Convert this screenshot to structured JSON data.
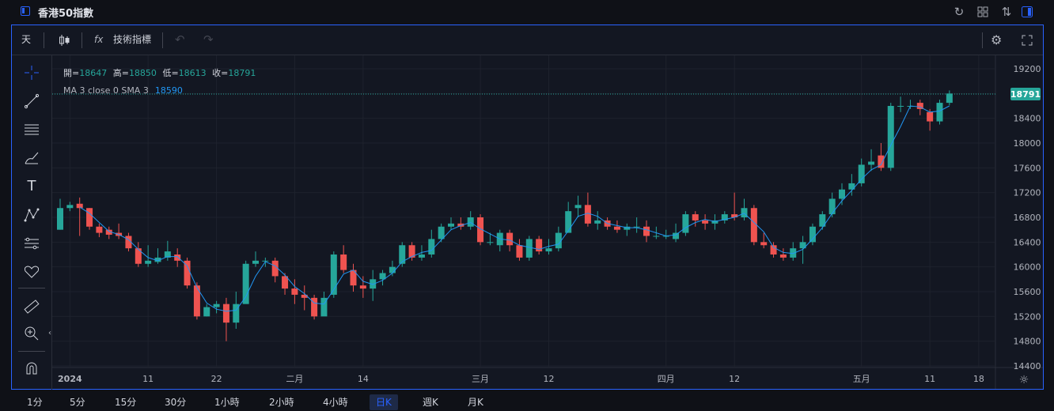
{
  "window": {
    "title": "香港50指數"
  },
  "toolbar": {
    "interval": "天",
    "indicators_label": "技術指標",
    "fx": "fx"
  },
  "legend": {
    "open_label": "開",
    "open": "18647",
    "high_label": "高",
    "high": "18850",
    "low_label": "低",
    "low": "18613",
    "close_label": "收",
    "close": "18791",
    "ma_label": "MA 3 close 0 SMA 3",
    "ma_value": "18590"
  },
  "price_tag": "18791",
  "colors": {
    "up": "#26a69a",
    "down": "#ef5350",
    "accent": "#2962ff",
    "ma": "#2196f3"
  },
  "chart_data": {
    "type": "candlestick",
    "y_ticks": [
      "19200",
      "18800",
      "18400",
      "18000",
      "17600",
      "17200",
      "16800",
      "16400",
      "16000",
      "15600",
      "15200",
      "14800",
      "14400"
    ],
    "ylim": [
      14400,
      19200
    ],
    "x_labels": [
      {
        "label": "2024",
        "index": 1
      },
      {
        "label": "11",
        "index": 9
      },
      {
        "label": "22",
        "index": 16
      },
      {
        "label": "二月",
        "index": 24
      },
      {
        "label": "14",
        "index": 31
      },
      {
        "label": "三月",
        "index": 43
      },
      {
        "label": "12",
        "index": 50
      },
      {
        "label": "四月",
        "index": 62
      },
      {
        "label": "12",
        "index": 69
      },
      {
        "label": "五月",
        "index": 82
      },
      {
        "label": "11",
        "index": 89
      },
      {
        "label": "18",
        "index": 94
      }
    ],
    "last_price": 18791,
    "candles": [
      [
        16600,
        16950,
        17100,
        16600
      ],
      [
        16950,
        17000,
        17050,
        16900
      ],
      [
        17020,
        16950,
        17120,
        16500
      ],
      [
        16950,
        16650,
        16950,
        16600
      ],
      [
        16650,
        16550,
        16700,
        16480
      ],
      [
        16600,
        16520,
        16650,
        16450
      ],
      [
        16550,
        16500,
        16700,
        16450
      ],
      [
        16500,
        16300,
        16550,
        16250
      ],
      [
        16300,
        16050,
        16400,
        16000
      ],
      [
        16050,
        16100,
        16350,
        16000
      ],
      [
        16080,
        16150,
        16300,
        16050
      ],
      [
        16150,
        16250,
        16420,
        16100
      ],
      [
        16200,
        16100,
        16300,
        16000
      ],
      [
        16100,
        15700,
        16150,
        15650
      ],
      [
        15700,
        15200,
        15750,
        15150
      ],
      [
        15200,
        15350,
        15400,
        15200
      ],
      [
        15350,
        15400,
        15450,
        15250
      ],
      [
        15400,
        15100,
        15500,
        14800
      ],
      [
        15100,
        15400,
        15600,
        15000
      ],
      [
        15400,
        16050,
        16100,
        15500
      ],
      [
        16050,
        16100,
        16250,
        16000
      ],
      [
        16100,
        16100,
        16150,
        16000
      ],
      [
        16100,
        15850,
        16150,
        15750
      ],
      [
        15850,
        15650,
        15900,
        15550
      ],
      [
        15650,
        15550,
        15800,
        15400
      ],
      [
        15550,
        15500,
        15700,
        15300
      ],
      [
        15500,
        15200,
        15550,
        15150
      ],
      [
        15200,
        15500,
        15600,
        15300
      ],
      [
        15550,
        16200,
        16250,
        15500
      ],
      [
        16200,
        15950,
        16350,
        15900
      ],
      [
        15950,
        15700,
        16050,
        15600
      ],
      [
        15700,
        15650,
        15850,
        15500
      ],
      [
        15650,
        15800,
        15950,
        15450
      ],
      [
        15800,
        15900,
        15950,
        15700
      ],
      [
        15900,
        16000,
        16100,
        15850
      ],
      [
        16050,
        16350,
        16400,
        16000
      ],
      [
        16350,
        16150,
        16400,
        16100
      ],
      [
        16150,
        16200,
        16350,
        16100
      ],
      [
        16200,
        16450,
        16600,
        16150
      ],
      [
        16450,
        16650,
        16700,
        16400
      ],
      [
        16650,
        16700,
        16800,
        16600
      ],
      [
        16700,
        16650,
        16800,
        16600
      ],
      [
        16650,
        16800,
        16900,
        16600
      ],
      [
        16800,
        16400,
        16850,
        16350
      ],
      [
        16400,
        16400,
        16550,
        16350
      ],
      [
        16350,
        16550,
        16600,
        16250
      ],
      [
        16550,
        16350,
        16600,
        16250
      ],
      [
        16350,
        16150,
        16450,
        16100
      ],
      [
        16150,
        16450,
        16500,
        16100
      ],
      [
        16450,
        16250,
        16500,
        16200
      ],
      [
        16250,
        16300,
        16450,
        16200
      ],
      [
        16300,
        16550,
        16650,
        16250
      ],
      [
        16550,
        16900,
        17050,
        16550
      ],
      [
        16950,
        17000,
        17150,
        16800
      ],
      [
        17000,
        16700,
        17200,
        16650
      ],
      [
        16700,
        16750,
        16900,
        16600
      ],
      [
        16750,
        16650,
        16800,
        16600
      ],
      [
        16650,
        16600,
        16750,
        16550
      ],
      [
        16600,
        16650,
        16700,
        16500
      ],
      [
        16650,
        16650,
        16800,
        16550
      ],
      [
        16650,
        16500,
        16750,
        16400
      ],
      [
        16500,
        16500,
        16650,
        16450
      ],
      [
        16500,
        16500,
        16600,
        16450
      ],
      [
        16450,
        16550,
        16700,
        16400
      ],
      [
        16550,
        16850,
        16900,
        16500
      ],
      [
        16850,
        16750,
        16900,
        16650
      ],
      [
        16750,
        16700,
        16850,
        16600
      ],
      [
        16700,
        16750,
        16850,
        16600
      ],
      [
        16750,
        16850,
        16900,
        16700
      ],
      [
        16850,
        16800,
        17200,
        16750
      ],
      [
        16800,
        16950,
        17100,
        16750
      ],
      [
        16950,
        16400,
        17000,
        16350
      ],
      [
        16400,
        16350,
        16550,
        16300
      ],
      [
        16350,
        16200,
        16400,
        16150
      ],
      [
        16200,
        16150,
        16300,
        16100
      ],
      [
        16150,
        16300,
        16400,
        16100
      ],
      [
        16300,
        16400,
        16500,
        16050
      ],
      [
        16400,
        16650,
        16700,
        16350
      ],
      [
        16650,
        16850,
        16900,
        16600
      ],
      [
        16850,
        17100,
        17200,
        16800
      ],
      [
        17100,
        17250,
        17350,
        17000
      ],
      [
        17250,
        17350,
        17500,
        17150
      ],
      [
        17350,
        17650,
        17750,
        17300
      ],
      [
        17650,
        17700,
        17900,
        17550
      ],
      [
        17800,
        17600,
        18000,
        17550
      ],
      [
        17600,
        18600,
        18650,
        17550
      ],
      [
        18600,
        18600,
        18750,
        18500
      ],
      [
        18600,
        18600,
        18700,
        18550
      ],
      [
        18650,
        18550,
        18700,
        18450
      ],
      [
        18500,
        18350,
        18550,
        18200
      ],
      [
        18350,
        18650,
        18700,
        18300
      ],
      [
        18650,
        18800,
        18850,
        18610
      ]
    ]
  },
  "timeframes": [
    "1分",
    "5分",
    "15分",
    "30分",
    "1小時",
    "2小時",
    "4小時",
    "日K",
    "週K",
    "月K"
  ],
  "active_timeframe": 7
}
